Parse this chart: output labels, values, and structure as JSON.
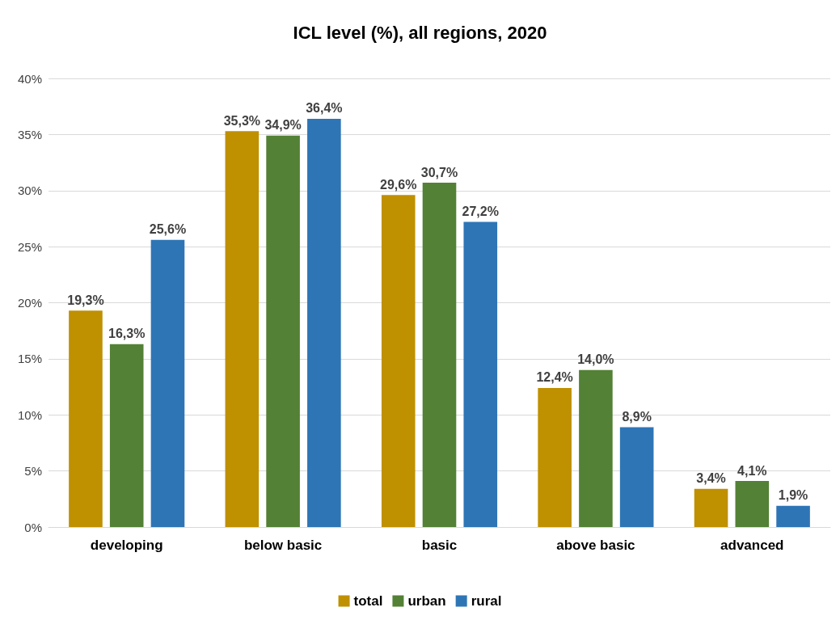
{
  "chart_data": {
    "type": "bar",
    "title": "ICL level (%), all regions, 2020",
    "categories": [
      "developing",
      "below basic",
      "basic",
      "above basic",
      "advanced"
    ],
    "series": [
      {
        "name": "total",
        "color": "#bf9000",
        "values": [
          19.3,
          35.3,
          29.6,
          12.4,
          3.4
        ],
        "value_labels": [
          "19,3%",
          "35,3%",
          "29,6%",
          "12,4%",
          "3,4%"
        ]
      },
      {
        "name": "urban",
        "color": "#538135",
        "values": [
          16.3,
          34.9,
          30.7,
          14.0,
          4.1
        ],
        "value_labels": [
          "16,3%",
          "34,9%",
          "30,7%",
          "14,0%",
          "4,1%"
        ]
      },
      {
        "name": "rural",
        "color": "#2e75b6",
        "values": [
          25.6,
          36.4,
          27.2,
          8.9,
          1.9
        ],
        "value_labels": [
          "25,6%",
          "36,4%",
          "27,2%",
          "8,9%",
          "1,9%"
        ]
      }
    ],
    "ylim": [
      0,
      40
    ],
    "yticks": [
      {
        "value": 0,
        "label": "0%"
      },
      {
        "value": 5,
        "label": "5%"
      },
      {
        "value": 10,
        "label": "10%"
      },
      {
        "value": 15,
        "label": "15%"
      },
      {
        "value": 20,
        "label": "20%"
      },
      {
        "value": 25,
        "label": "25%"
      },
      {
        "value": 30,
        "label": "30%"
      },
      {
        "value": 35,
        "label": "35%"
      },
      {
        "value": 40,
        "label": "40%"
      }
    ],
    "grid": "y",
    "legend": "bottom"
  }
}
